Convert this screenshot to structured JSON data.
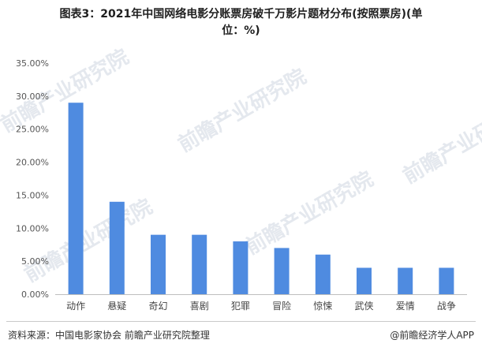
{
  "title_line1": "图表3：2021年中国网络电影分账票房破千万影片题材分布(按照票房)(单",
  "title_line2": "位：%)",
  "watermark": "前瞻产业研究院",
  "footer": {
    "source": "资料来源：中国电影家协会 前瞻产业研究院整理",
    "brand": "@前瞻经济学人APP"
  },
  "chart_data": {
    "type": "bar",
    "title": "图表3：2021年中国网络电影分账票房破千万影片题材分布(按照票房)(单位：%)",
    "xlabel": "",
    "ylabel": "",
    "categories": [
      "动作",
      "悬疑",
      "奇幻",
      "喜剧",
      "犯罪",
      "冒险",
      "惊悚",
      "武侠",
      "爱情",
      "战争"
    ],
    "values": [
      29.0,
      14.0,
      9.0,
      9.0,
      8.0,
      7.0,
      6.0,
      4.0,
      4.0,
      4.0
    ],
    "ylim": [
      0,
      35
    ],
    "yticks": [
      "0.00%",
      "5.00%",
      "10.00%",
      "15.00%",
      "20.00%",
      "25.00%",
      "30.00%",
      "35.00%"
    ],
    "grid": false,
    "legend": "none",
    "bar_color": "#4f8be0"
  }
}
